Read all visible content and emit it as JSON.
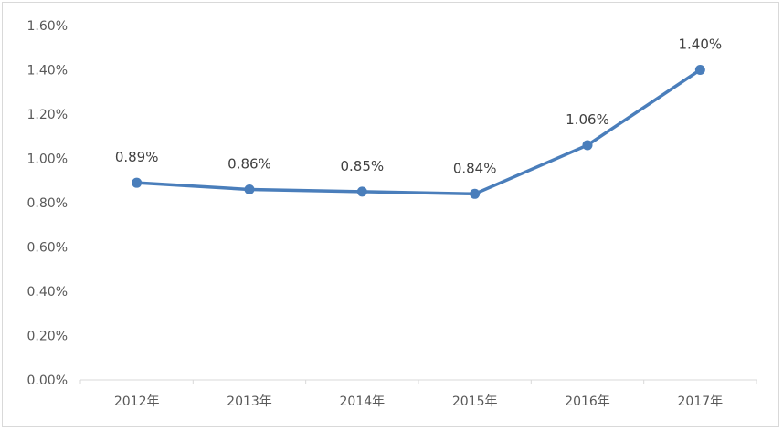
{
  "chart_data": {
    "type": "line",
    "title": "",
    "xlabel": "",
    "ylabel": "",
    "categories": [
      "2012年",
      "2013年",
      "2014年",
      "2015年",
      "2016年",
      "2017年"
    ],
    "series": [
      {
        "values": [
          0.89,
          0.86,
          0.85,
          0.84,
          1.06,
          1.4
        ],
        "data_labels": [
          "0.89%",
          "0.86%",
          "0.85%",
          "0.84%",
          "1.06%",
          "1.40%"
        ]
      }
    ],
    "y_ticks": [
      0.0,
      0.2,
      0.4,
      0.6,
      0.8,
      1.0,
      1.2,
      1.4,
      1.6
    ],
    "y_tick_labels": [
      "0.00%",
      "0.20%",
      "0.40%",
      "0.60%",
      "0.80%",
      "1.00%",
      "1.20%",
      "1.40%",
      "1.60%"
    ],
    "ylim": [
      0,
      1.6
    ],
    "grid": false,
    "legend": "none",
    "colors": {
      "series": "#4a7ebb",
      "axis": "#d9d9d9",
      "tick_text": "#595959",
      "label_text": "#404040"
    }
  }
}
